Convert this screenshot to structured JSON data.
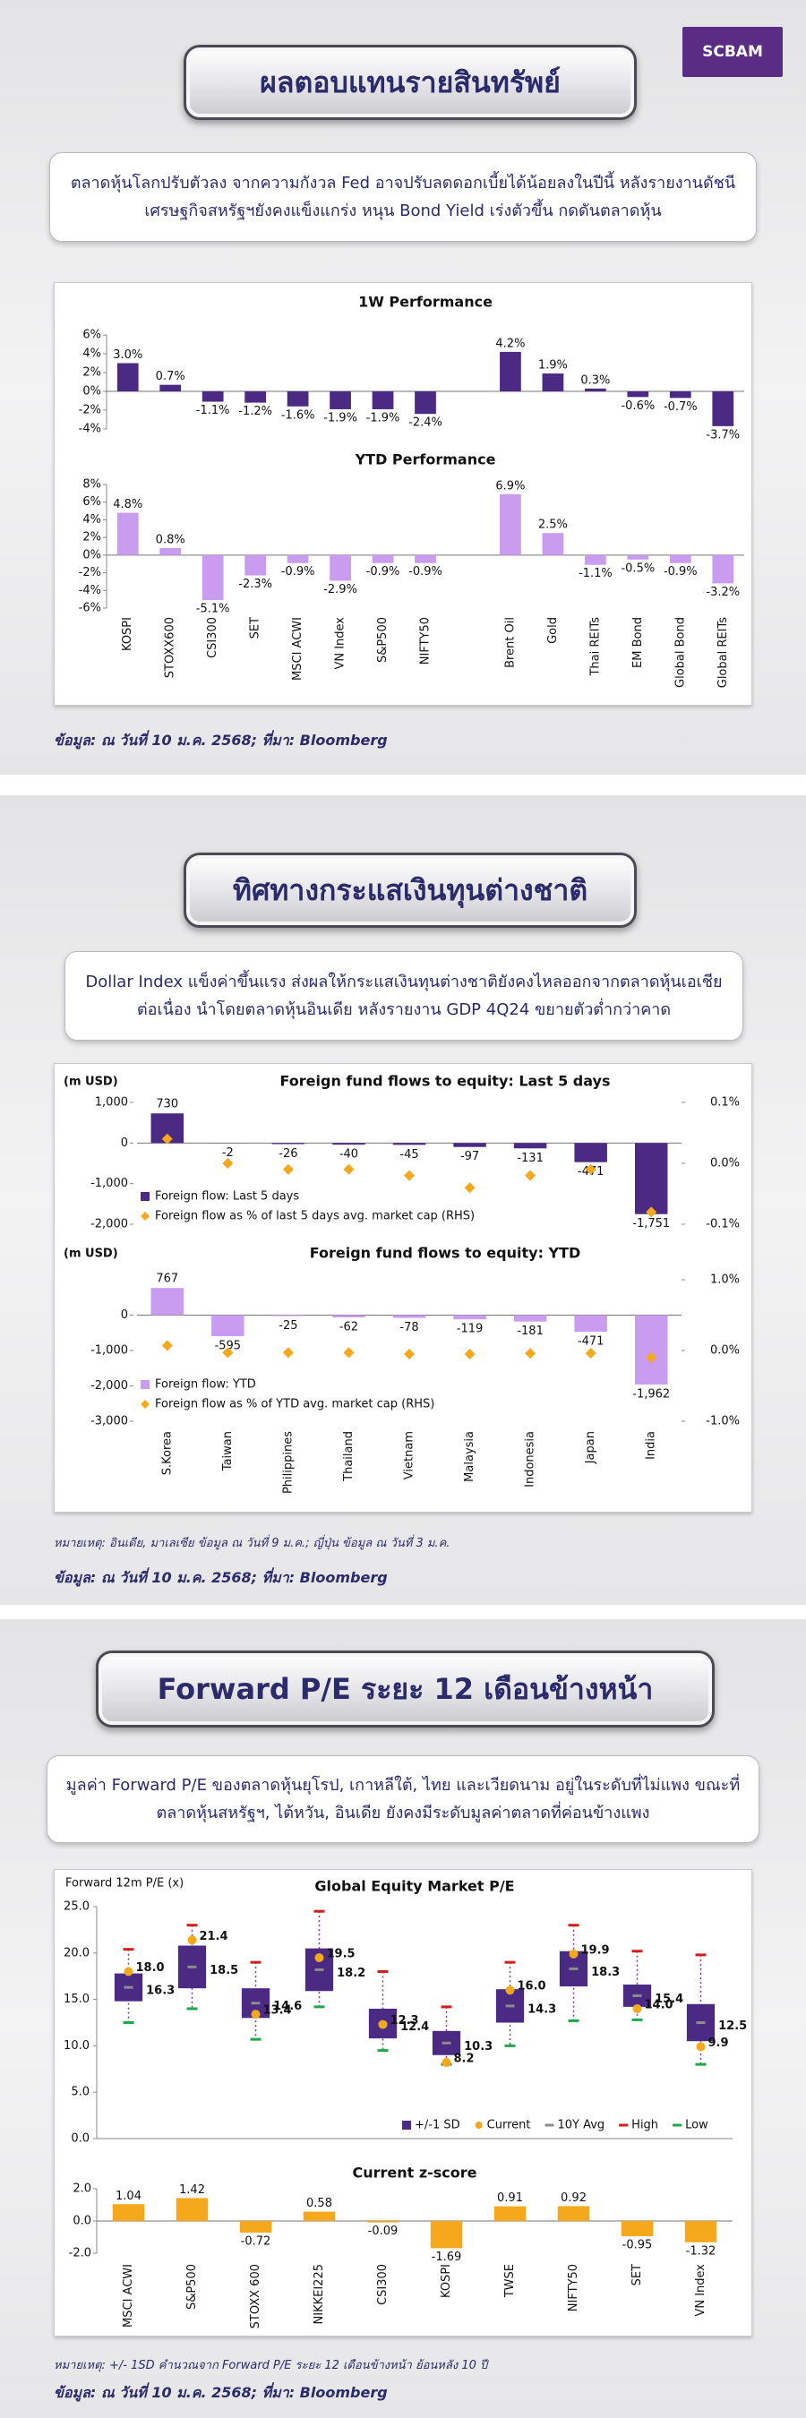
{
  "logo": "SCBAM",
  "sections": [
    {
      "title": "ผลตอบแทนรายสินทรัพย์",
      "description": "ตลาดหุ้นโลกปรับตัวลง จากความกังวล Fed อาจปรับลดดอกเบี้ยได้น้อยลงในปีนี้ หลังรายงานดัชนีเศรษฐกิจสหรัฐฯยังคงแข็งแกร่ง หนุน Bond Yield เร่งตัวขึ้น กดดันตลาดหุ้น",
      "source": "ข้อมูล: ณ วันที่ 10 ม.ค. 2568; ที่มา: Bloomberg"
    },
    {
      "title": "ทิศทางกระแสเงินทุนต่างชาติ",
      "description": "Dollar Index แข็งค่าขึ้นแรง ส่งผลให้กระแสเงินทุนต่างชาติยังคงไหลออกจากตลาดหุ้นเอเชียต่อเนื่อง นำโดยตลาดหุ้นอินเดีย หลังรายงาน GDP 4Q24 ขยายตัวต่ำกว่าคาด",
      "note": "หมายเหตุ: อินเดีย, มาเลเซีย ข้อมูล ณ วันที่ 9 ม.ค.; ญี่ปุ่น ข้อมูล ณ วันที่ 3 ม.ค.",
      "source": "ข้อมูล: ณ วันที่ 10 ม.ค. 2568; ที่มา: Bloomberg"
    },
    {
      "title": "Forward P/E ระยะ 12 เดือนข้างหน้า",
      "description": "มูลค่า Forward  P/E ของตลาดหุ้นยุโรป, เกาหลีใต้, ไทย และเวียดนาม อยู่ในระดับที่ไม่แพง ขณะที่ตลาดหุ้นสหรัฐฯ, ไต้หวัน, อินเดีย ยังคงมีระดับมูลค่าตลาดที่ค่อนข้างแพง",
      "note": "หมายเหตุ: +/- 1SD คำนวณจาก Forward P/E ระยะ 12 เดือนข้างหน้า ย้อนหลัง 10 ปี",
      "source": "ข้อมูล: ณ วันที่ 10 ม.ค. 2568; ที่มา: Bloomberg"
    }
  ],
  "chart_data": [
    {
      "type": "bar",
      "title": "1W Performance",
      "color": "#4b2a84",
      "values": [
        3.0,
        0.7,
        -1.1,
        -1.2,
        -1.6,
        -1.9,
        -1.9,
        -2.4,
        null,
        4.2,
        1.9,
        0.3,
        -0.6,
        -0.7,
        -3.7
      ],
      "value_labels": [
        "3.0%",
        "0.7%",
        "-1.1%",
        "-1.2%",
        "-1.6%",
        "-1.9%",
        "-1.9%",
        "-2.4%",
        null,
        "4.2%",
        "1.9%",
        "0.3%",
        "-0.6%",
        "-0.7%",
        "-3.7%"
      ],
      "ylim": [
        -4,
        6
      ],
      "yticks": [
        {
          "value": 6,
          "label": "6%"
        },
        {
          "value": 4,
          "label": "4%"
        },
        {
          "value": 2,
          "label": "2%"
        },
        {
          "value": 0,
          "label": "0%"
        },
        {
          "value": -2,
          "label": "-2%"
        },
        {
          "value": -4,
          "label": "-4%"
        }
      ]
    },
    {
      "type": "bar",
      "title": "YTD Performance",
      "color": "#c99cf0",
      "categories": [
        "KOSPI",
        "STOXX600",
        "CSI300",
        "SET",
        "MSCI ACWI",
        "VN Index",
        "S&P500",
        "NIFTY50",
        null,
        "Brent Oil",
        "Gold",
        "Thai REITs",
        "EM Bond",
        "Global Bond",
        "Global REITs"
      ],
      "values": [
        4.8,
        0.8,
        -5.1,
        -2.3,
        -0.9,
        -2.9,
        -0.9,
        -0.9,
        null,
        6.9,
        2.5,
        -1.1,
        -0.5,
        -0.9,
        -3.2
      ],
      "value_labels": [
        "4.8%",
        "0.8%",
        "-5.1%",
        "-2.3%",
        "-0.9%",
        "-2.9%",
        "-0.9%",
        "-0.9%",
        null,
        "6.9%",
        "2.5%",
        "-1.1%",
        "-0.5%",
        "-0.9%",
        "-3.2%"
      ],
      "ylim": [
        -6,
        8
      ],
      "yticks": [
        {
          "value": 8,
          "label": "8%"
        },
        {
          "value": 6,
          "label": "6%"
        },
        {
          "value": 4,
          "label": "4%"
        },
        {
          "value": 2,
          "label": "2%"
        },
        {
          "value": 0,
          "label": "0%"
        },
        {
          "value": -2,
          "label": "-2%"
        },
        {
          "value": -4,
          "label": "-4%"
        },
        {
          "value": -6,
          "label": "-6%"
        }
      ]
    },
    {
      "type": "combo",
      "title": "Foreign fund flows to equity: Last 5 days",
      "y_label": "(m USD)",
      "legend": "lower left",
      "series": [
        {
          "type": "bar",
          "name": "Foreign flow: Last 5 days",
          "color": "#4b2a84",
          "values": [
            730,
            -2,
            -26,
            -40,
            -45,
            -97,
            -131,
            -471,
            -1751
          ],
          "value_labels": [
            "730",
            "-2",
            "-26",
            "-40",
            "-45",
            "-97",
            "-131",
            "-471",
            "-1,751"
          ]
        },
        {
          "type": "scatter",
          "axis": "y2",
          "name": "Foreign flow as % of last 5 days avg. market cap (RHS)",
          "color": "#f5a81c",
          "values": [
            0.04,
            0.0,
            -0.01,
            -0.01,
            -0.02,
            -0.04,
            -0.02,
            -0.01,
            -0.08
          ]
        }
      ],
      "ylim": [
        -2000,
        1000
      ],
      "yticks": [
        {
          "value": 1000,
          "label": "1,000"
        },
        0,
        {
          "value": -1000,
          "label": "-1,000"
        },
        {
          "value": -2000,
          "label": "-2,000"
        }
      ],
      "y2lim": [
        -0.1,
        0.1
      ],
      "y2ticks": [
        {
          "value": 0.1,
          "label": "0.1%"
        },
        {
          "value": 0.0,
          "label": "0.0%"
        },
        {
          "value": -0.1,
          "label": "-0.1%"
        }
      ]
    },
    {
      "type": "combo",
      "title": "Foreign fund flows to equity: YTD",
      "y_label": "(m USD)",
      "legend": "lower left",
      "categories": [
        "S.Korea",
        "Taiwan",
        "Philippines",
        "Thailand",
        "Vietnam",
        "Malaysia",
        "Indonesia",
        "Japan",
        "India"
      ],
      "series": [
        {
          "type": "bar",
          "name": "Foreign flow: YTD",
          "color": "#c99cf0",
          "values": [
            767,
            -595,
            -25,
            -62,
            -78,
            -119,
            -181,
            -471,
            -1962
          ],
          "value_labels": [
            "767",
            "-595",
            "-25",
            "-62",
            "-78",
            "-119",
            "-181",
            "-471",
            "-1,962"
          ]
        },
        {
          "type": "scatter",
          "axis": "y2",
          "name": "Foreign flow as % of YTD avg. market cap (RHS)",
          "color": "#f5a81c",
          "values": [
            0.07,
            -0.03,
            -0.03,
            -0.03,
            -0.05,
            -0.05,
            -0.04,
            -0.04,
            -0.1
          ]
        }
      ],
      "ylim": [
        -3000,
        1000
      ],
      "yticks": [
        0,
        {
          "value": -1000,
          "label": "-1,000"
        },
        {
          "value": -2000,
          "label": "-2,000"
        },
        {
          "value": -3000,
          "label": "-3,000"
        }
      ],
      "y2lim": [
        -1,
        1
      ],
      "y2ticks": [
        {
          "value": 1,
          "label": "1.0%"
        },
        {
          "value": 0,
          "label": "0.0%"
        },
        {
          "value": -1,
          "label": "-1.0%"
        }
      ]
    },
    {
      "type": "box",
      "title": "Global Equity Market P/E",
      "y_label": "Forward 12m P/E (x)",
      "legend": "lower right",
      "series": [
        {
          "name": "+/-1 SD",
          "color": "#4b2a84",
          "lower": [
            14.8,
            16.2,
            13.0,
            15.9,
            10.8,
            9.0,
            12.5,
            16.4,
            14.2,
            10.5
          ],
          "upper": [
            17.8,
            20.8,
            16.2,
            20.5,
            14.0,
            11.6,
            16.1,
            20.2,
            16.6,
            14.5
          ]
        },
        {
          "name": "Current",
          "color": "#f5a81c",
          "values": [
            18.0,
            21.4,
            13.4,
            19.5,
            12.3,
            8.2,
            16.0,
            19.9,
            14.0,
            9.9
          ],
          "value_labels": [
            "18.0",
            "21.4",
            "13.4",
            "19.5",
            "12.3",
            "8.2",
            "16.0",
            "19.9",
            "14.0",
            "9.9"
          ]
        },
        {
          "name": "10Y Avg",
          "color": "#8c8c8c",
          "values": [
            16.3,
            18.5,
            14.6,
            18.2,
            12.4,
            10.3,
            14.3,
            18.3,
            15.4,
            12.5
          ]
        },
        {
          "name": "High",
          "color": "#d0201c",
          "values": [
            20.4,
            23.0,
            19.0,
            24.5,
            18.0,
            14.2,
            19.0,
            23.0,
            20.2,
            19.8
          ]
        },
        {
          "name": "Low",
          "color": "#1fa84a",
          "values": [
            12.5,
            14.0,
            10.7,
            14.2,
            9.5,
            8.0,
            10.0,
            12.7,
            12.8,
            8.0
          ]
        }
      ],
      "ylim": [
        0,
        25
      ],
      "yticks": [
        {
          "value": 25,
          "label": "25.0"
        },
        {
          "value": 20,
          "label": "20.0"
        },
        {
          "value": 15,
          "label": "15.0"
        },
        {
          "value": 10,
          "label": "10.0"
        },
        {
          "value": 5,
          "label": "5.0"
        },
        {
          "value": 0,
          "label": "0.0"
        }
      ]
    },
    {
      "type": "bar",
      "title": "Current z-score",
      "color": "#f5a81c",
      "categories": [
        "MSCI ACWI",
        "S&P500",
        "STOXX 600",
        "NIKKEI225",
        "CSI300",
        "KOSPI",
        "TWSE",
        "NIFTY50",
        "SET",
        "VN Index"
      ],
      "values": [
        1.04,
        1.42,
        -0.72,
        0.58,
        -0.09,
        -1.69,
        0.91,
        0.92,
        -0.95,
        -1.32
      ],
      "ylim": [
        -2,
        2
      ],
      "yticks": [
        {
          "value": 2,
          "label": "2.0"
        },
        {
          "value": 0,
          "label": "0.0"
        },
        {
          "value": -2,
          "label": "-2.0"
        }
      ]
    }
  ]
}
